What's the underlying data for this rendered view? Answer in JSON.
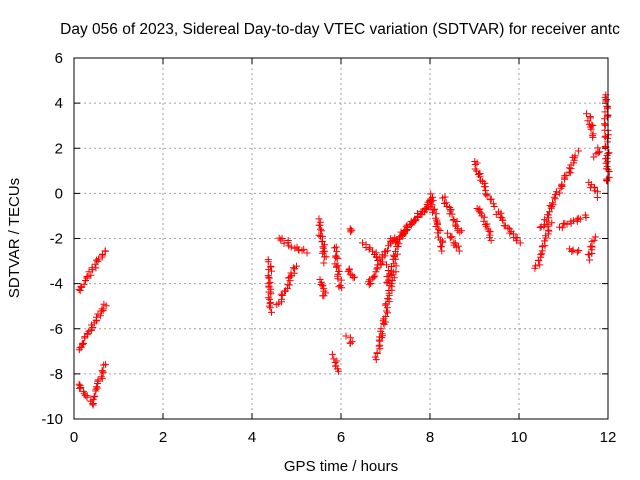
{
  "chart_data": {
    "type": "scatter",
    "title": "Day 056 of 2023, Sidereal Day-to-day VTEC variation (SDTVAR) for receiver antc",
    "xlabel": "GPS time / hours",
    "ylabel": "SDTVAR / TECUs",
    "xlim": [
      0,
      12
    ],
    "ylim": [
      -10,
      6
    ],
    "xticks": [
      0,
      2,
      4,
      6,
      8,
      10,
      12
    ],
    "yticks": [
      -10,
      -8,
      -6,
      -4,
      -2,
      0,
      2,
      4,
      6
    ],
    "grid": true,
    "marker": "+",
    "series_color": "#ff0000",
    "series": [
      {
        "name": "SDTVAR",
        "segments": [
          {
            "x": [
              0.1,
              0.7
            ],
            "y": [
              -4.3,
              -2.5
            ]
          },
          {
            "x": [
              0.1,
              0.7
            ],
            "y": [
              -7.0,
              -4.9
            ]
          },
          {
            "x": [
              0.1,
              0.45
            ],
            "y": [
              -8.4,
              -9.4
            ]
          },
          {
            "x": [
              0.4,
              0.7
            ],
            "y": [
              -9.2,
              -7.6
            ]
          },
          {
            "x": [
              4.4,
              4.4
            ],
            "y": [
              -3.0,
              -5.2
            ]
          },
          {
            "x": [
              4.6,
              5.2
            ],
            "y": [
              -2.0,
              -2.6
            ]
          },
          {
            "x": [
              4.6,
              5.0
            ],
            "y": [
              -4.9,
              -3.2
            ]
          },
          {
            "x": [
              5.5,
              5.65
            ],
            "y": [
              -1.2,
              -3.0
            ]
          },
          {
            "x": [
              5.5,
              5.65
            ],
            "y": [
              -3.8,
              -4.6
            ]
          },
          {
            "x": [
              5.85,
              6.0
            ],
            "y": [
              -2.4,
              -4.2
            ]
          },
          {
            "x": [
              5.85,
              5.95
            ],
            "y": [
              -7.2,
              -7.9
            ]
          },
          {
            "x": [
              6.15,
              6.25
            ],
            "y": [
              -6.4,
              -6.7
            ]
          },
          {
            "x": [
              6.15,
              6.3
            ],
            "y": [
              -3.3,
              -3.8
            ]
          },
          {
            "x": [
              6.2,
              6.25
            ],
            "y": [
              -1.5,
              -1.7
            ]
          },
          {
            "x": [
              6.5,
              7.0
            ],
            "y": [
              -2.2,
              -3.2
            ]
          },
          {
            "x": [
              6.6,
              7.2
            ],
            "y": [
              -4.1,
              -1.9
            ]
          },
          {
            "x": [
              6.8,
              7.2
            ],
            "y": [
              -7.3,
              -3.3
            ]
          },
          {
            "x": [
              7.0,
              7.4
            ],
            "y": [
              -4.0,
              -1.6
            ]
          },
          {
            "x": [
              7.2,
              8.0
            ],
            "y": [
              -2.2,
              -0.4
            ]
          },
          {
            "x": [
              7.4,
              8.1
            ],
            "y": [
              -1.8,
              -0.2
            ]
          },
          {
            "x": [
              8.0,
              8.3
            ],
            "y": [
              -0.1,
              -2.5
            ]
          },
          {
            "x": [
              8.3,
              8.7
            ],
            "y": [
              -0.2,
              -1.8
            ]
          },
          {
            "x": [
              8.4,
              8.65
            ],
            "y": [
              -1.8,
              -2.5
            ]
          },
          {
            "x": [
              9.0,
              9.4
            ],
            "y": [
              1.4,
              -0.5
            ]
          },
          {
            "x": [
              9.05,
              9.4
            ],
            "y": [
              -0.6,
              -2.0
            ]
          },
          {
            "x": [
              9.5,
              10.0
            ],
            "y": [
              -0.8,
              -2.2
            ]
          },
          {
            "x": [
              10.4,
              10.7
            ],
            "y": [
              -3.3,
              -1.3
            ]
          },
          {
            "x": [
              10.5,
              11.3
            ],
            "y": [
              -1.6,
              1.8
            ]
          },
          {
            "x": [
              10.9,
              11.5
            ],
            "y": [
              -1.5,
              -1.0
            ]
          },
          {
            "x": [
              11.1,
              11.35
            ],
            "y": [
              -2.5,
              -2.6
            ]
          },
          {
            "x": [
              11.55,
              11.7
            ],
            "y": [
              3.5,
              2.5
            ]
          },
          {
            "x": [
              11.55,
              11.7
            ],
            "y": [
              -2.9,
              -2.0
            ]
          },
          {
            "x": [
              11.6,
              11.75
            ],
            "y": [
              0.5,
              -0.1
            ]
          },
          {
            "x": [
              11.7,
              11.8
            ],
            "y": [
              1.6,
              2.0
            ]
          },
          {
            "x": [
              11.95,
              12.0
            ],
            "y": [
              4.4,
              0.5
            ]
          }
        ]
      }
    ]
  }
}
